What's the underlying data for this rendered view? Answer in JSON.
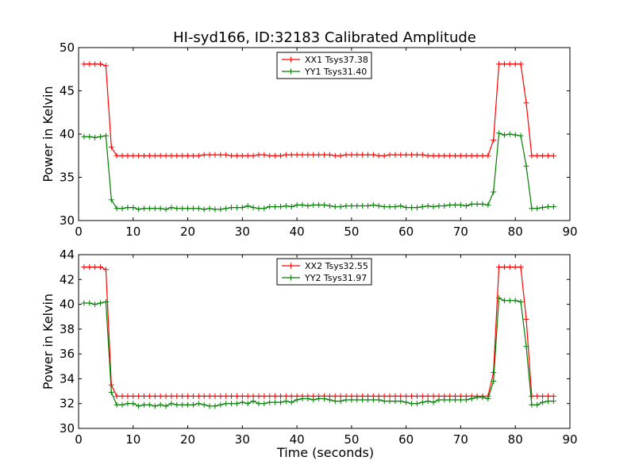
{
  "figure": {
    "title": "HI-syd166, ID:32183 Calibrated Amplitude",
    "xlabel": "Time (seconds)",
    "background": "#ffffff"
  },
  "chart_data": [
    {
      "type": "line",
      "ylabel": "Power in Kelvin",
      "xlim": [
        0,
        90
      ],
      "ylim": [
        30,
        50
      ],
      "xticks": [
        "0",
        "10",
        "20",
        "30",
        "40",
        "50",
        "60",
        "70",
        "80",
        "90"
      ],
      "yticks": [
        "30",
        "35",
        "40",
        "45",
        "50"
      ],
      "grid": false,
      "legend_position": "upper-center",
      "x": [
        1,
        2,
        3,
        4,
        5,
        6,
        7,
        8,
        9,
        10,
        11,
        12,
        13,
        14,
        15,
        16,
        17,
        18,
        19,
        20,
        21,
        22,
        23,
        24,
        25,
        26,
        27,
        28,
        29,
        30,
        31,
        32,
        33,
        34,
        35,
        36,
        37,
        38,
        39,
        40,
        41,
        42,
        43,
        44,
        45,
        46,
        47,
        48,
        49,
        50,
        51,
        52,
        53,
        54,
        55,
        56,
        57,
        58,
        59,
        60,
        61,
        62,
        63,
        64,
        65,
        66,
        67,
        68,
        69,
        70,
        71,
        72,
        73,
        74,
        75,
        76,
        77,
        78,
        79,
        80,
        81,
        82,
        83,
        84,
        85,
        86,
        87
      ],
      "series": [
        {
          "name": "XX1 Tsys37.38",
          "color": "#ff0000",
          "values": [
            48.1,
            48.1,
            48.1,
            48.1,
            47.9,
            38.5,
            37.5,
            37.5,
            37.5,
            37.5,
            37.5,
            37.5,
            37.5,
            37.5,
            37.5,
            37.5,
            37.5,
            37.5,
            37.5,
            37.5,
            37.5,
            37.5,
            37.6,
            37.6,
            37.6,
            37.6,
            37.6,
            37.5,
            37.5,
            37.5,
            37.5,
            37.5,
            37.6,
            37.6,
            37.5,
            37.5,
            37.5,
            37.6,
            37.6,
            37.6,
            37.6,
            37.6,
            37.6,
            37.6,
            37.6,
            37.6,
            37.5,
            37.5,
            37.6,
            37.6,
            37.6,
            37.6,
            37.6,
            37.6,
            37.5,
            37.5,
            37.6,
            37.6,
            37.6,
            37.6,
            37.6,
            37.6,
            37.6,
            37.5,
            37.5,
            37.5,
            37.5,
            37.5,
            37.5,
            37.5,
            37.5,
            37.5,
            37.5,
            37.5,
            37.5,
            39.3,
            48.1,
            48.1,
            48.1,
            48.1,
            48.1,
            43.6,
            37.5,
            37.5,
            37.5,
            37.5,
            37.5
          ]
        },
        {
          "name": "YY1 Tsys31.40",
          "color": "#008000",
          "values": [
            39.7,
            39.7,
            39.6,
            39.7,
            39.8,
            32.4,
            31.4,
            31.4,
            31.5,
            31.5,
            31.3,
            31.4,
            31.4,
            31.4,
            31.4,
            31.3,
            31.5,
            31.4,
            31.4,
            31.4,
            31.4,
            31.4,
            31.3,
            31.4,
            31.3,
            31.3,
            31.4,
            31.5,
            31.5,
            31.5,
            31.7,
            31.5,
            31.4,
            31.4,
            31.6,
            31.6,
            31.6,
            31.7,
            31.6,
            31.8,
            31.8,
            31.7,
            31.8,
            31.8,
            31.8,
            31.7,
            31.6,
            31.6,
            31.7,
            31.7,
            31.7,
            31.7,
            31.7,
            31.8,
            31.7,
            31.6,
            31.6,
            31.6,
            31.7,
            31.5,
            31.5,
            31.5,
            31.6,
            31.7,
            31.6,
            31.7,
            31.7,
            31.8,
            31.8,
            31.8,
            31.7,
            31.9,
            31.9,
            31.9,
            31.8,
            33.3,
            40.1,
            39.9,
            40.0,
            39.9,
            39.8,
            36.3,
            31.4,
            31.4,
            31.5,
            31.6,
            31.6
          ]
        }
      ]
    },
    {
      "type": "line",
      "ylabel": "Power in Kelvin",
      "xlim": [
        0,
        90
      ],
      "ylim": [
        30,
        44
      ],
      "xticks": [
        "0",
        "10",
        "20",
        "30",
        "40",
        "50",
        "60",
        "70",
        "80",
        "90"
      ],
      "yticks": [
        "30",
        "32",
        "34",
        "36",
        "38",
        "40",
        "42",
        "44"
      ],
      "grid": false,
      "legend_position": "upper-center",
      "x": [
        1,
        2,
        3,
        4,
        5,
        6,
        7,
        8,
        9,
        10,
        11,
        12,
        13,
        14,
        15,
        16,
        17,
        18,
        19,
        20,
        21,
        22,
        23,
        24,
        25,
        26,
        27,
        28,
        29,
        30,
        31,
        32,
        33,
        34,
        35,
        36,
        37,
        38,
        39,
        40,
        41,
        42,
        43,
        44,
        45,
        46,
        47,
        48,
        49,
        50,
        51,
        52,
        53,
        54,
        55,
        56,
        57,
        58,
        59,
        60,
        61,
        62,
        63,
        64,
        65,
        66,
        67,
        68,
        69,
        70,
        71,
        72,
        73,
        74,
        75,
        76,
        77,
        78,
        79,
        80,
        81,
        82,
        83,
        84,
        85,
        86,
        87
      ],
      "series": [
        {
          "name": "XX2 Tsys32.55",
          "color": "#ff0000",
          "values": [
            43.0,
            43.0,
            43.0,
            43.0,
            42.8,
            33.5,
            32.6,
            32.6,
            32.6,
            32.6,
            32.6,
            32.6,
            32.6,
            32.6,
            32.6,
            32.6,
            32.6,
            32.6,
            32.6,
            32.6,
            32.6,
            32.6,
            32.6,
            32.6,
            32.6,
            32.6,
            32.6,
            32.6,
            32.6,
            32.6,
            32.6,
            32.6,
            32.6,
            32.6,
            32.6,
            32.6,
            32.6,
            32.6,
            32.6,
            32.6,
            32.6,
            32.6,
            32.6,
            32.6,
            32.6,
            32.6,
            32.6,
            32.6,
            32.6,
            32.6,
            32.6,
            32.6,
            32.6,
            32.6,
            32.6,
            32.6,
            32.6,
            32.6,
            32.6,
            32.6,
            32.6,
            32.6,
            32.6,
            32.6,
            32.6,
            32.6,
            32.6,
            32.6,
            32.6,
            32.6,
            32.6,
            32.6,
            32.6,
            32.6,
            32.6,
            34.5,
            43.0,
            43.0,
            43.0,
            43.0,
            43.0,
            38.8,
            32.6,
            32.6,
            32.6,
            32.6,
            32.6
          ]
        },
        {
          "name": "YY2 Tsys31.97",
          "color": "#008000",
          "values": [
            40.1,
            40.1,
            40.0,
            40.1,
            40.2,
            32.9,
            31.9,
            31.9,
            32.0,
            32.0,
            31.8,
            31.9,
            31.9,
            31.8,
            31.9,
            31.8,
            32.0,
            31.9,
            31.9,
            31.9,
            31.9,
            32.0,
            31.9,
            31.8,
            31.8,
            31.9,
            32.0,
            32.0,
            32.0,
            32.1,
            32.0,
            32.2,
            32.0,
            32.0,
            32.1,
            32.1,
            32.1,
            32.2,
            32.1,
            32.3,
            32.4,
            32.4,
            32.3,
            32.4,
            32.4,
            32.3,
            32.2,
            32.2,
            32.3,
            32.3,
            32.3,
            32.3,
            32.3,
            32.3,
            32.3,
            32.2,
            32.2,
            32.2,
            32.2,
            32.1,
            32.0,
            32.0,
            32.1,
            32.2,
            32.1,
            32.3,
            32.3,
            32.3,
            32.3,
            32.3,
            32.3,
            32.4,
            32.5,
            32.5,
            32.4,
            33.8,
            40.5,
            40.3,
            40.3,
            40.3,
            40.2,
            36.6,
            31.9,
            31.9,
            32.1,
            32.2,
            32.2
          ]
        }
      ]
    }
  ]
}
